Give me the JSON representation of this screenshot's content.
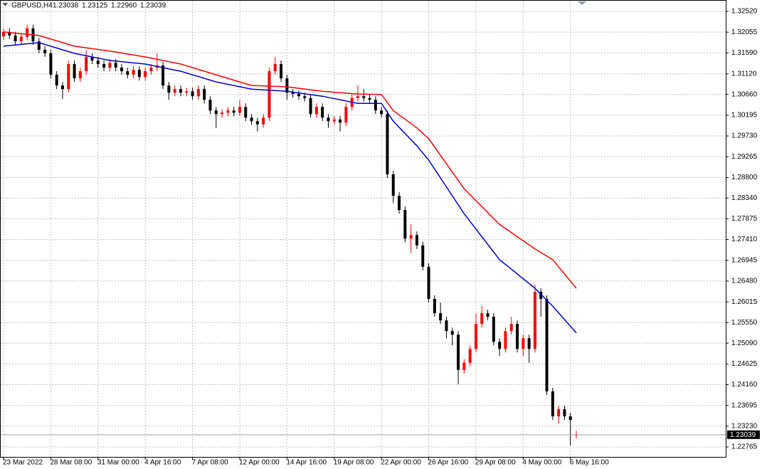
{
  "chart_data": {
    "type": "candlestick",
    "symbol": "GBPUSD,H4",
    "header_labels": [
      "1.23038",
      "1.23125",
      "1.22960",
      "1.23039"
    ],
    "up_color": "#ff0000",
    "down_color": "#000000",
    "grid": true,
    "xlim": [
      -0.6,
      122.3
    ],
    "ylim": [
      1.22542,
      1.32775
    ],
    "xticks": [
      {
        "value": 0,
        "label": "23 Mar 2022"
      },
      {
        "value": 8,
        "label": "28 Mar 08:00"
      },
      {
        "value": 16,
        "label": "31 Mar 00:00"
      },
      {
        "value": 24,
        "label": "4 Apr 16:00"
      },
      {
        "value": 32,
        "label": "7 Apr 08:00"
      },
      {
        "value": 40,
        "label": "12 Apr 00:00"
      },
      {
        "value": 48,
        "label": "14 Apr 16:00"
      },
      {
        "value": 56,
        "label": "19 Apr 08:00"
      },
      {
        "value": 64,
        "label": "22 Apr 00:00"
      },
      {
        "value": 72,
        "label": "26 Apr 16:00"
      },
      {
        "value": 80,
        "label": "29 Apr 08:00"
      },
      {
        "value": 88,
        "label": "4 May 00:00"
      },
      {
        "value": 96,
        "label": "6 May 16:00"
      }
    ],
    "yticks": [
      {
        "value": 1.3252,
        "label": "1.32520"
      },
      1.32055,
      {
        "value": 1.3159,
        "label": "1.31590"
      },
      {
        "value": 1.3112,
        "label": "1.31120"
      },
      {
        "value": 1.3066,
        "label": "1.30660"
      },
      1.30195,
      {
        "value": 1.2973,
        "label": "1.29730"
      },
      1.29265,
      {
        "value": 1.288,
        "label": "1.28800"
      },
      {
        "value": 1.2834,
        "label": "1.28340"
      },
      1.27875,
      {
        "value": 1.2741,
        "label": "1.27410"
      },
      1.26945,
      {
        "value": 1.2648,
        "label": "1.26480"
      },
      1.26015,
      {
        "value": 1.2555,
        "label": "1.25550"
      },
      {
        "value": 1.2509,
        "label": "1.25090"
      },
      1.24625,
      {
        "value": 1.2416,
        "label": "1.24160"
      },
      1.23695,
      {
        "value": 1.2323,
        "label": "1.23230"
      },
      1.22765
    ],
    "x": [
      0,
      1,
      2,
      3,
      4,
      5,
      6,
      7,
      8,
      9,
      10,
      11,
      12,
      13,
      14,
      15,
      16,
      17,
      18,
      19,
      20,
      21,
      22,
      23,
      24,
      25,
      26,
      27,
      28,
      29,
      30,
      31,
      32,
      33,
      34,
      35,
      36,
      37,
      38,
      39,
      40,
      41,
      42,
      43,
      44,
      45,
      46,
      47,
      48,
      49,
      50,
      51,
      52,
      53,
      54,
      55,
      56,
      57,
      58,
      59,
      60,
      61,
      62,
      63,
      64,
      65,
      66,
      67,
      68,
      69,
      70,
      71,
      72,
      73,
      74,
      75,
      76,
      77,
      78,
      79,
      80,
      81,
      82,
      83,
      84,
      85,
      86,
      87,
      88,
      89,
      90,
      91,
      92,
      93,
      94,
      95,
      96,
      97
    ],
    "candles": [
      [
        1.3196,
        1.3214,
        1.3188,
        1.3206
      ],
      [
        1.3206,
        1.3214,
        1.319,
        1.3198
      ],
      [
        1.3198,
        1.3206,
        1.3177,
        1.3185
      ],
      [
        1.3185,
        1.3203,
        1.3177,
        1.3195
      ],
      [
        1.3195,
        1.3222,
        1.3187,
        1.3214
      ],
      [
        1.3214,
        1.3222,
        1.3177,
        1.3185
      ],
      [
        1.3185,
        1.3193,
        1.3158,
        1.3166
      ],
      [
        1.3166,
        1.3174,
        1.315,
        1.3158
      ],
      [
        1.3158,
        1.3166,
        1.3102,
        1.311
      ],
      [
        1.311,
        1.3118,
        1.3078,
        1.3086
      ],
      [
        1.3086,
        1.3094,
        1.3056,
        1.3078
      ],
      [
        1.3078,
        1.3142,
        1.307,
        1.3134
      ],
      [
        1.3134,
        1.3142,
        1.3094,
        1.3102
      ],
      [
        1.3102,
        1.3126,
        1.3094,
        1.3118
      ],
      [
        1.3118,
        1.3164,
        1.311,
        1.315
      ],
      [
        1.315,
        1.3158,
        1.3134,
        1.3142
      ],
      [
        1.3142,
        1.315,
        1.3126,
        1.3134
      ],
      [
        1.3134,
        1.3142,
        1.3118,
        1.3126
      ],
      [
        1.3126,
        1.3145,
        1.3118,
        1.3137
      ],
      [
        1.3137,
        1.3145,
        1.3118,
        1.3126
      ],
      [
        1.3126,
        1.3134,
        1.311,
        1.3118
      ],
      [
        1.3118,
        1.3126,
        1.3102,
        1.311
      ],
      [
        1.311,
        1.3129,
        1.3102,
        1.3121
      ],
      [
        1.3121,
        1.3129,
        1.3097,
        1.3105
      ],
      [
        1.3105,
        1.3126,
        1.3097,
        1.3118
      ],
      [
        1.3118,
        1.3134,
        1.311,
        1.3126
      ],
      [
        1.3126,
        1.3158,
        1.3118,
        1.3131
      ],
      [
        1.3131,
        1.3139,
        1.3078,
        1.3086
      ],
      [
        1.3086,
        1.3094,
        1.3054,
        1.307
      ],
      [
        1.307,
        1.3086,
        1.3062,
        1.3078
      ],
      [
        1.3078,
        1.3086,
        1.3062,
        1.307
      ],
      [
        1.307,
        1.3081,
        1.3062,
        1.3073
      ],
      [
        1.3073,
        1.3081,
        1.3054,
        1.3062
      ],
      [
        1.3062,
        1.3086,
        1.3054,
        1.3078
      ],
      [
        1.3078,
        1.3086,
        1.3046,
        1.3054
      ],
      [
        1.3054,
        1.3062,
        1.3022,
        1.303
      ],
      [
        1.303,
        1.3038,
        1.2991,
        1.3022
      ],
      [
        1.3022,
        1.3033,
        1.3014,
        1.3025
      ],
      [
        1.3025,
        1.3038,
        1.3017,
        1.303
      ],
      [
        1.303,
        1.3038,
        1.3017,
        1.3025
      ],
      [
        1.3025,
        1.3054,
        1.3017,
        1.3038
      ],
      [
        1.3038,
        1.3046,
        1.3006,
        1.3014
      ],
      [
        1.3014,
        1.3022,
        1.2998,
        1.3006
      ],
      [
        1.3006,
        1.3014,
        1.2983,
        1.2999
      ],
      [
        1.2999,
        1.3022,
        1.2991,
        1.3014
      ],
      [
        1.3014,
        1.3126,
        1.3006,
        1.3118
      ],
      [
        1.3118,
        1.315,
        1.311,
        1.3134
      ],
      [
        1.3134,
        1.3142,
        1.3094,
        1.3102
      ],
      [
        1.3102,
        1.311,
        1.3054,
        1.307
      ],
      [
        1.307,
        1.3078,
        1.3059,
        1.3067
      ],
      [
        1.3067,
        1.3075,
        1.3054,
        1.3062
      ],
      [
        1.3062,
        1.307,
        1.305,
        1.3058
      ],
      [
        1.3058,
        1.3066,
        1.3014,
        1.3022
      ],
      [
        1.3022,
        1.3046,
        1.3014,
        1.3038
      ],
      [
        1.3038,
        1.3046,
        1.3006,
        1.3014
      ],
      [
        1.3014,
        1.3022,
        1.2991,
        1.3006
      ],
      [
        1.3006,
        1.3018,
        1.2998,
        1.301
      ],
      [
        1.301,
        1.3018,
        1.2983,
        1.3003
      ],
      [
        1.3003,
        1.3046,
        1.2995,
        1.3038
      ],
      [
        1.3038,
        1.3066,
        1.303,
        1.3058
      ],
      [
        1.3058,
        1.3086,
        1.305,
        1.3062
      ],
      [
        1.3062,
        1.3078,
        1.305,
        1.3058
      ],
      [
        1.3058,
        1.3066,
        1.3046,
        1.3054
      ],
      [
        1.3054,
        1.3062,
        1.3022,
        1.303
      ],
      [
        1.303,
        1.3038,
        1.3014,
        1.3022
      ],
      [
        1.3022,
        1.303,
        1.2879,
        1.2887
      ],
      [
        1.2887,
        1.2895,
        1.2823,
        1.2839
      ],
      [
        1.2839,
        1.2847,
        1.2799,
        1.2807
      ],
      [
        1.2807,
        1.2815,
        1.2735,
        1.2743
      ],
      [
        1.2743,
        1.2775,
        1.2711,
        1.2751
      ],
      [
        1.2751,
        1.2759,
        1.272,
        1.2728
      ],
      [
        1.2728,
        1.2736,
        1.2672,
        1.268
      ],
      [
        1.268,
        1.2688,
        1.26,
        1.2608
      ],
      [
        1.2608,
        1.2616,
        1.2568,
        1.2576
      ],
      [
        1.2576,
        1.26,
        1.2552,
        1.256
      ],
      [
        1.256,
        1.2568,
        1.252,
        1.2536
      ],
      [
        1.2536,
        1.2544,
        1.2504,
        1.2528
      ],
      [
        1.2528,
        1.2536,
        1.2417,
        1.2449
      ],
      [
        1.2449,
        1.2473,
        1.2441,
        1.2465
      ],
      [
        1.2465,
        1.2504,
        1.2457,
        1.2496
      ],
      [
        1.2496,
        1.2576,
        1.2488,
        1.2552
      ],
      [
        1.2552,
        1.2592,
        1.2544,
        1.2576
      ],
      [
        1.2576,
        1.2584,
        1.256,
        1.2568
      ],
      [
        1.2568,
        1.2576,
        1.2504,
        1.2512
      ],
      [
        1.2512,
        1.252,
        1.248,
        1.2496
      ],
      [
        1.2496,
        1.2544,
        1.2488,
        1.2536
      ],
      [
        1.2536,
        1.2568,
        1.2528,
        1.2552
      ],
      [
        1.2552,
        1.256,
        1.2488,
        1.2496
      ],
      [
        1.2496,
        1.2528,
        1.248,
        1.252
      ],
      [
        1.252,
        1.2528,
        1.2465,
        1.2496
      ],
      [
        1.2496,
        1.264,
        1.2488,
        1.2624
      ],
      [
        1.2624,
        1.2632,
        1.2568,
        1.2608
      ],
      [
        1.2608,
        1.2616,
        1.2393,
        1.2401
      ],
      [
        1.2401,
        1.2409,
        1.2337,
        1.2345
      ],
      [
        1.2345,
        1.2369,
        1.2329,
        1.2361
      ],
      [
        1.2361,
        1.2369,
        1.2337,
        1.2345
      ],
      [
        1.2345,
        1.2353,
        1.228,
        1.2337
      ],
      [
        1.23038,
        1.23125,
        1.2296,
        1.23039
      ]
    ],
    "lines": [
      {
        "color": "#ff0000",
        "x": [
          0,
          6,
          12,
          18,
          24,
          30,
          36,
          42,
          48,
          54,
          60,
          64,
          66,
          70,
          72,
          78,
          84,
          90,
          93,
          97
        ],
        "values": [
          1.3206,
          1.3198,
          1.3174,
          1.3163,
          1.315,
          1.3134,
          1.311,
          1.3086,
          1.3083,
          1.3073,
          1.3067,
          1.3066,
          1.303,
          1.2991,
          1.2967,
          1.2855,
          1.2775,
          1.272,
          1.2696,
          1.2632
        ]
      },
      {
        "color": "#0000cc",
        "x": [
          0,
          6,
          12,
          18,
          24,
          30,
          36,
          42,
          48,
          54,
          60,
          64,
          66,
          70,
          72,
          78,
          84,
          90,
          93,
          97
        ],
        "values": [
          1.3174,
          1.3182,
          1.3158,
          1.3142,
          1.3134,
          1.3118,
          1.3094,
          1.3078,
          1.3073,
          1.3062,
          1.3046,
          1.3046,
          1.3006,
          1.2951,
          1.2919,
          1.2799,
          1.2696,
          1.2632,
          1.2592,
          1.2532
        ]
      }
    ]
  }
}
